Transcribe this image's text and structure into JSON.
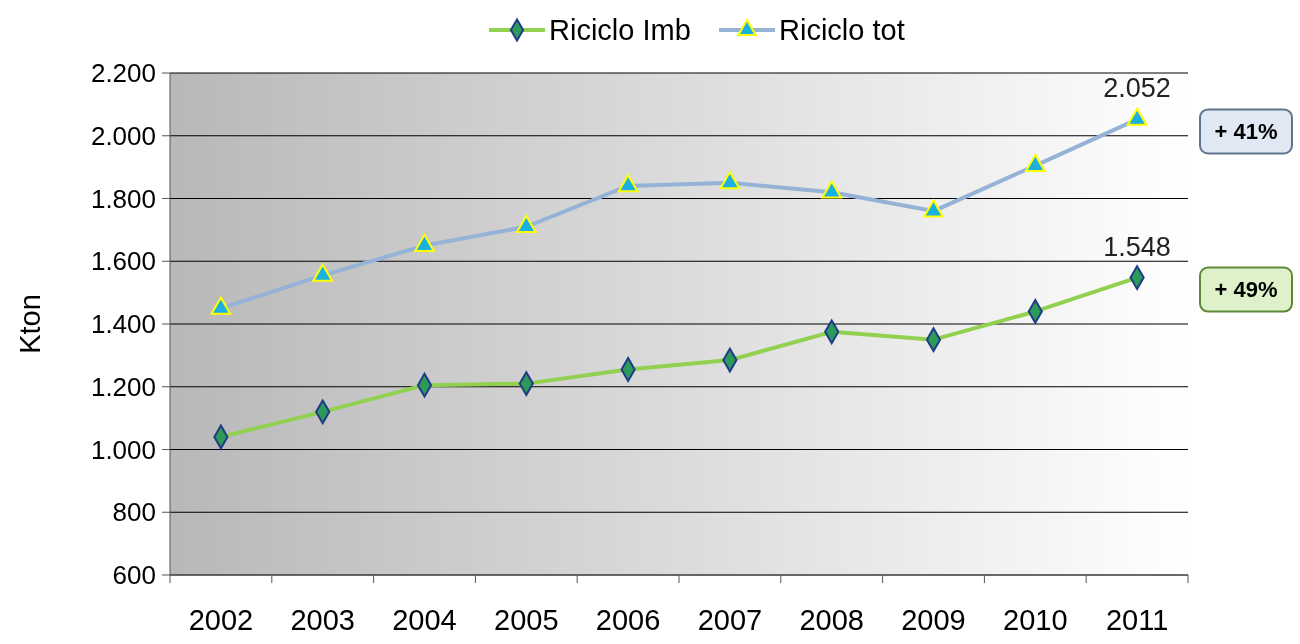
{
  "chart_data": {
    "type": "line",
    "ylabel": "Kton",
    "categories": [
      "2002",
      "2003",
      "2004",
      "2005",
      "2006",
      "2007",
      "2008",
      "2009",
      "2010",
      "2011"
    ],
    "series": [
      {
        "name": "Riciclo Imb",
        "color": "#92d050",
        "marker": "diamond",
        "values": [
          1040,
          1120,
          1205,
          1210,
          1255,
          1285,
          1375,
          1350,
          1440,
          1548
        ],
        "value_labels": [
          null,
          null,
          null,
          null,
          null,
          null,
          null,
          null,
          null,
          "1.548"
        ]
      },
      {
        "name": "Riciclo tot",
        "color": "#95b3d7",
        "marker": "triangle",
        "values": [
          1450,
          1555,
          1650,
          1710,
          1840,
          1850,
          1820,
          1760,
          1905,
          2052
        ],
        "value_labels": [
          null,
          null,
          null,
          null,
          null,
          null,
          null,
          null,
          null,
          "2.052"
        ]
      }
    ],
    "ylim": [
      600,
      2200
    ],
    "yticks": [
      {
        "value": 600,
        "label": "600"
      },
      {
        "value": 800,
        "label": "800"
      },
      {
        "value": 1000,
        "label": "1.000"
      },
      {
        "value": 1200,
        "label": "1.200"
      },
      {
        "value": 1400,
        "label": "1.400"
      },
      {
        "value": 1600,
        "label": "1.600"
      },
      {
        "value": 1800,
        "label": "1.800"
      },
      {
        "value": 2000,
        "label": "2.000"
      },
      {
        "value": 2200,
        "label": "2.200"
      }
    ],
    "grid": "y",
    "legend": "top",
    "line_style": "solid",
    "annotations": [
      "+ 49%",
      "+ 41%"
    ]
  }
}
